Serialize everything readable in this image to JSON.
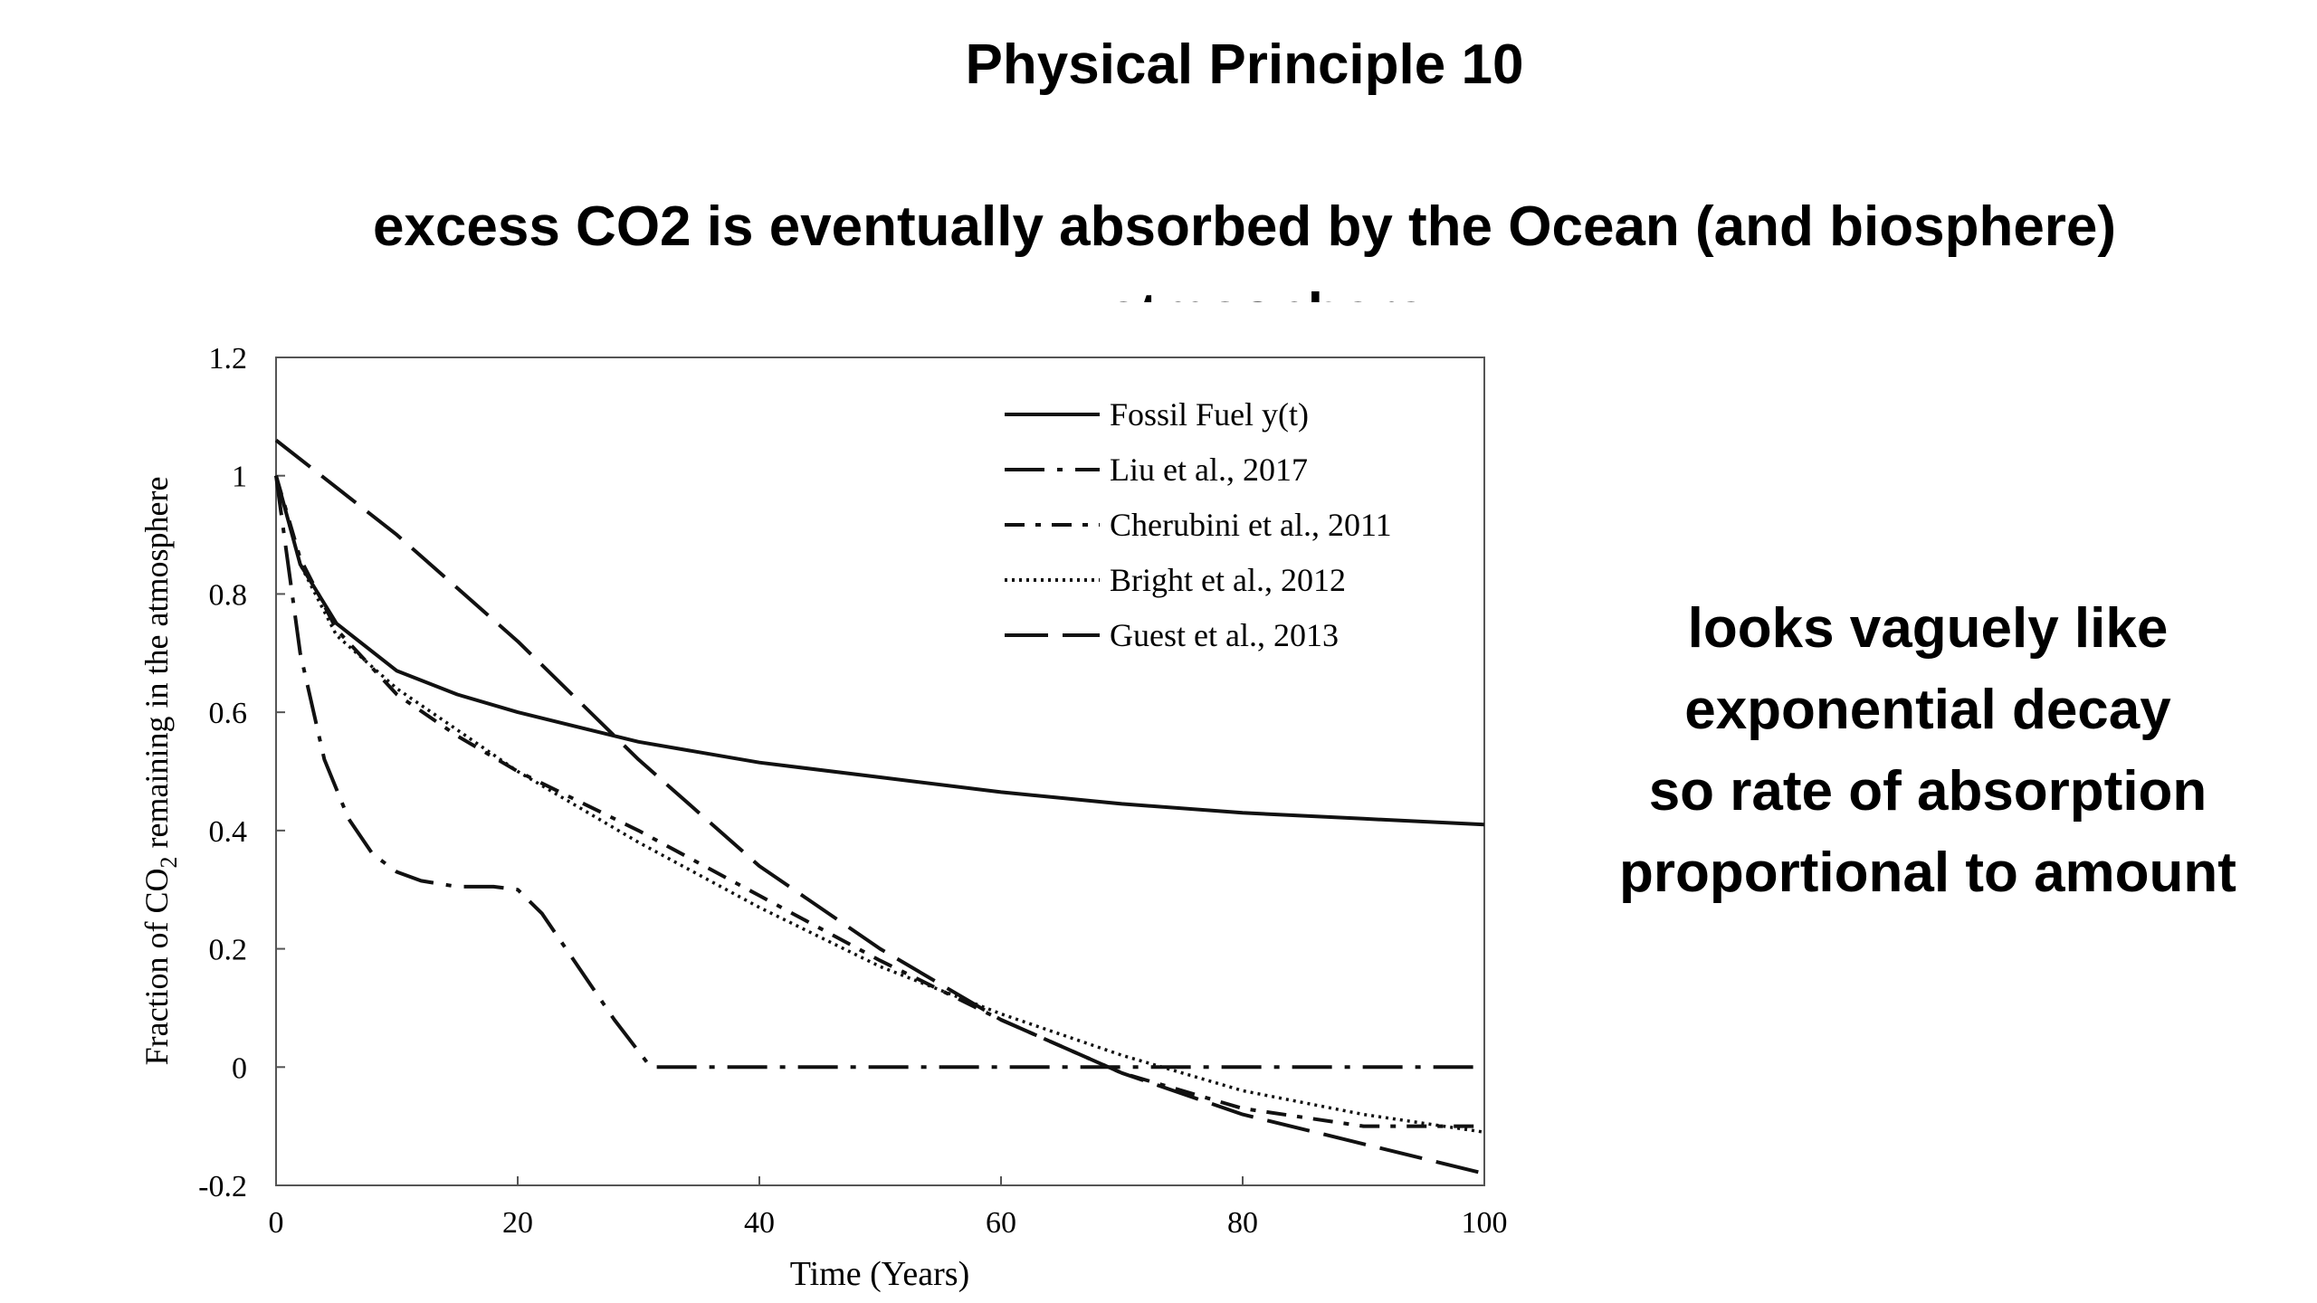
{
  "slide": {
    "title": "Physical Principle 10",
    "subtitle": "excess CO2 is eventually absorbed by the Ocean (and biosphere)",
    "cropped_line": "atmosphere",
    "side_note": [
      "looks vaguely like",
      "exponential decay",
      "so rate of absorption",
      "proportional to amount"
    ]
  },
  "chart_data": {
    "type": "line",
    "title": "",
    "xlabel": "Time (Years)",
    "ylabel_prefix": "Fraction of CO",
    "ylabel_sub": "2",
    "ylabel_suffix": " remaining in the atmosphere",
    "xlim": [
      0,
      100
    ],
    "ylim": [
      -0.2,
      1.2
    ],
    "xticks": [
      0,
      20,
      40,
      60,
      80,
      100
    ],
    "xtick_labels": [
      "0",
      "20",
      "40",
      "60",
      "80",
      "100"
    ],
    "yticks": [
      -0.2,
      0,
      0.2,
      0.4,
      0.6,
      0.8,
      1,
      1.2
    ],
    "ytick_labels": [
      "-0.2",
      "0",
      "0.2",
      "0.4",
      "0.6",
      "0.8",
      "1",
      "1.2"
    ],
    "legend_position": "top-right",
    "series": [
      {
        "name": "Fossil Fuel y(t)",
        "style": "solid",
        "x": [
          0,
          2,
          5,
          10,
          15,
          20,
          30,
          40,
          50,
          60,
          70,
          80,
          90,
          100
        ],
        "y": [
          1.0,
          0.85,
          0.75,
          0.67,
          0.63,
          0.6,
          0.55,
          0.515,
          0.49,
          0.465,
          0.445,
          0.43,
          0.42,
          0.41
        ]
      },
      {
        "name": "Liu et al., 2017",
        "style": "dashdot_long",
        "x": [
          0,
          2,
          4,
          6,
          8,
          10,
          12,
          15,
          18,
          20,
          22,
          25,
          28,
          31,
          35,
          40,
          60,
          80,
          100
        ],
        "y": [
          1.0,
          0.7,
          0.52,
          0.42,
          0.36,
          0.33,
          0.315,
          0.305,
          0.305,
          0.3,
          0.26,
          0.17,
          0.08,
          0.0,
          0.0,
          0.0,
          0.0,
          0.0,
          0.0
        ]
      },
      {
        "name": "Cherubini et al., 2011",
        "style": "dashdot",
        "x": [
          0,
          2,
          5,
          10,
          15,
          20,
          30,
          40,
          50,
          60,
          70,
          80,
          90,
          100
        ],
        "y": [
          1.0,
          0.86,
          0.74,
          0.63,
          0.56,
          0.5,
          0.4,
          0.29,
          0.18,
          0.08,
          -0.01,
          -0.07,
          -0.1,
          -0.1
        ]
      },
      {
        "name": "Bright et al., 2012",
        "style": "dotted",
        "x": [
          0,
          2,
          5,
          10,
          15,
          20,
          30,
          40,
          50,
          60,
          70,
          80,
          90,
          100
        ],
        "y": [
          1.0,
          0.85,
          0.73,
          0.64,
          0.57,
          0.5,
          0.38,
          0.27,
          0.17,
          0.09,
          0.02,
          -0.04,
          -0.08,
          -0.11
        ]
      },
      {
        "name": "Guest et al., 2013",
        "style": "dashed",
        "x": [
          0,
          10,
          20,
          30,
          40,
          50,
          60,
          70,
          80,
          90,
          100
        ],
        "y": [
          1.06,
          0.9,
          0.72,
          0.52,
          0.34,
          0.2,
          0.08,
          -0.01,
          -0.08,
          -0.13,
          -0.18
        ]
      }
    ]
  }
}
